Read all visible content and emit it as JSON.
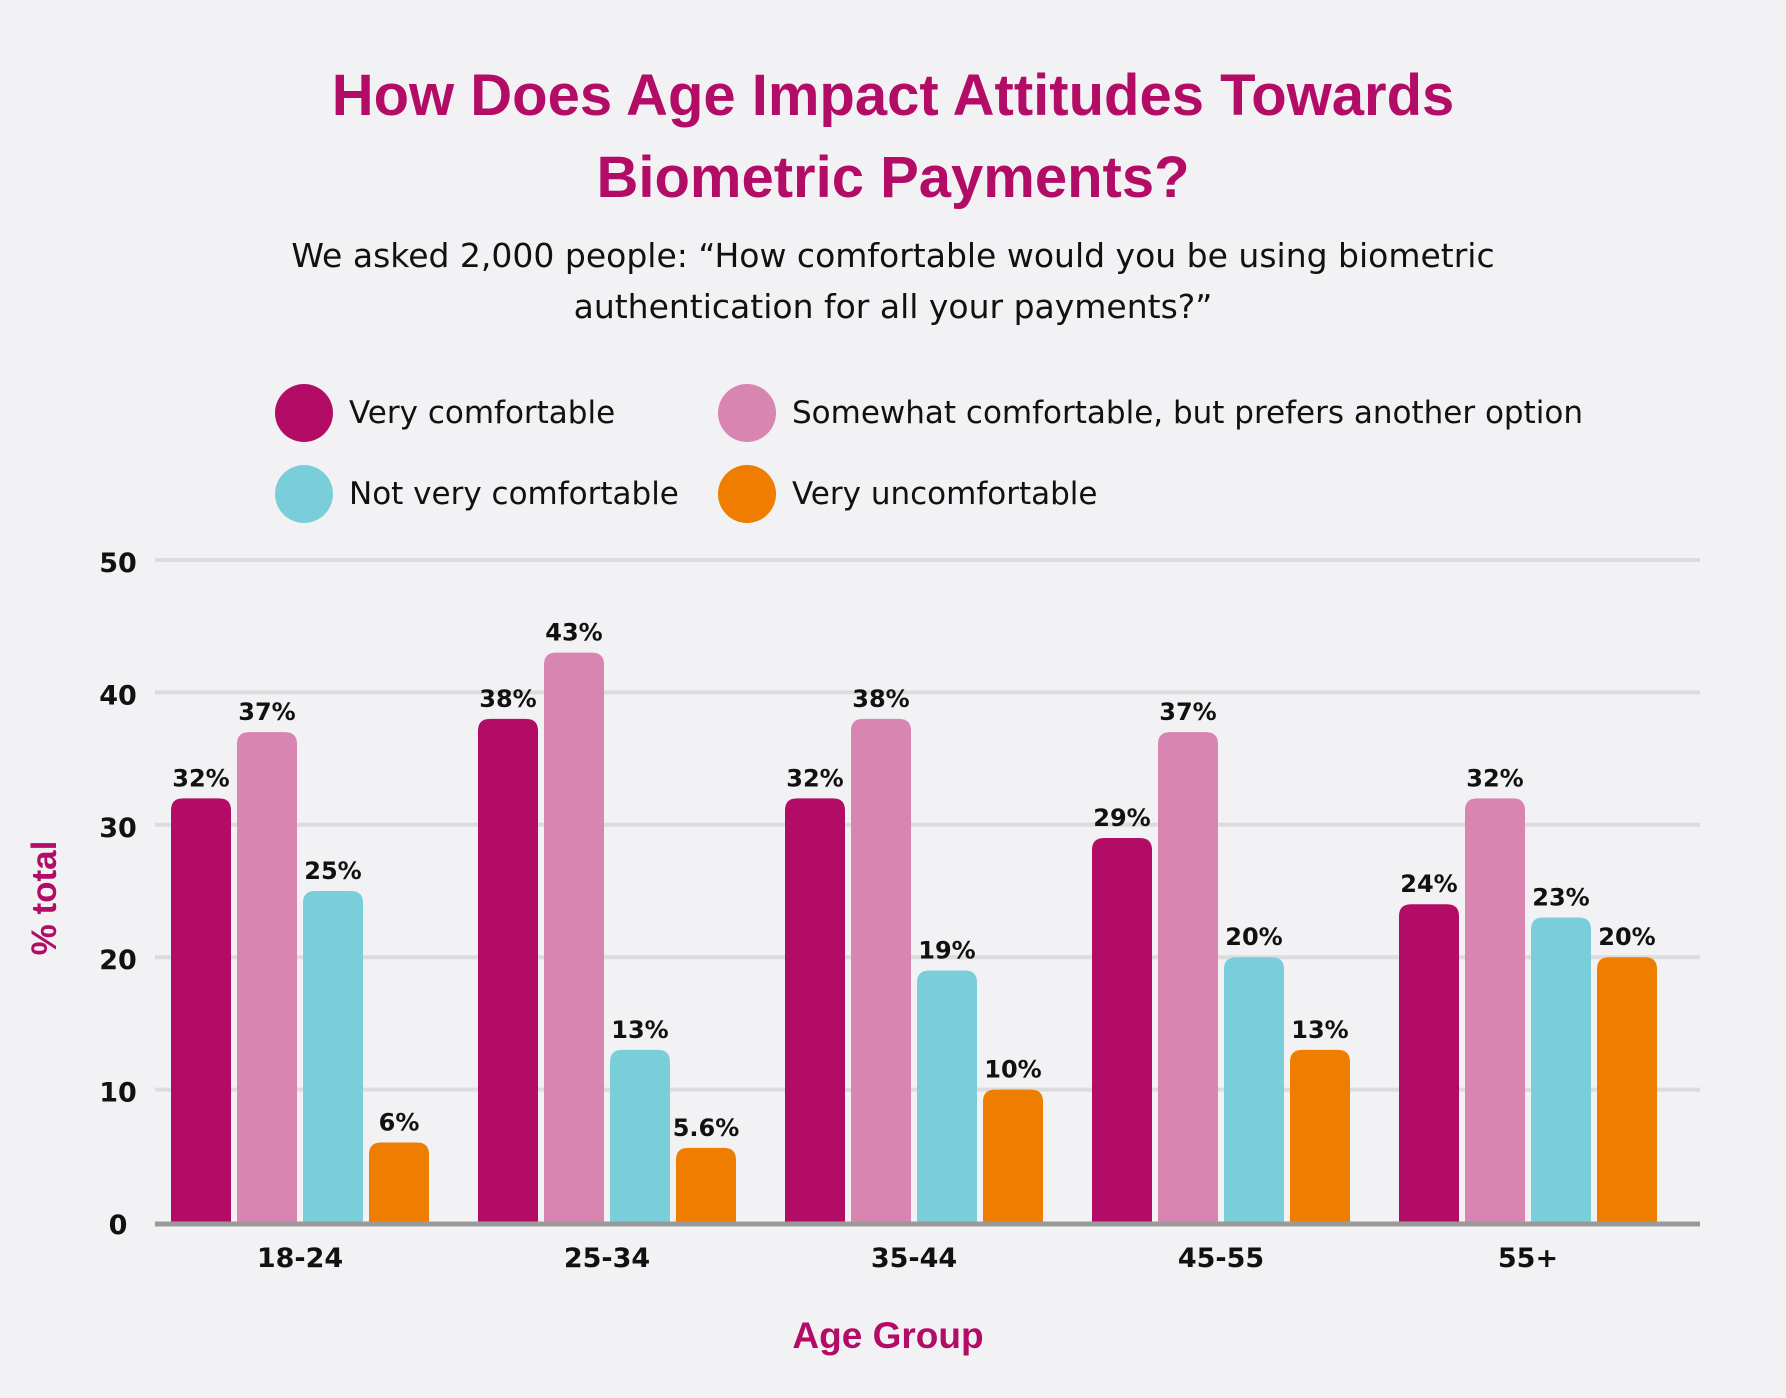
{
  "colors": {
    "accent": "#b30c66",
    "series": [
      "#b30c66",
      "#d885b2",
      "#79ced9",
      "#ee7d00"
    ],
    "gridline": "#dcdbde",
    "axis": "#9a9a9a",
    "background": "#f2f1f3"
  },
  "chart_data": {
    "type": "bar",
    "title_lines": [
      "How Does Age Impact Attitudes Towards",
      "Biometric Payments?"
    ],
    "subtitle_lines": [
      "We asked 2,000 people: “How comfortable would you be using biometric",
      "authentication for all your payments?”"
    ],
    "xlabel": "Age Group",
    "ylabel": "% total",
    "ylim": [
      0,
      50
    ],
    "yticks": [
      "0",
      "10",
      "20",
      "30",
      "40",
      "50"
    ],
    "grid": true,
    "legend_position": "top",
    "categories": [
      "18-24",
      "25-34",
      "35-44",
      "45-55",
      "55+"
    ],
    "series": [
      {
        "name": "Very comfortable",
        "values": [
          32,
          38,
          32,
          29,
          24
        ],
        "labels": [
          "32%",
          "38%",
          "32%",
          "29%",
          "24%"
        ]
      },
      {
        "name": "Somewhat comfortable, but prefers another option",
        "values": [
          37,
          43,
          38,
          37,
          32
        ],
        "labels": [
          "37%",
          "43%",
          "38%",
          "37%",
          "32%"
        ]
      },
      {
        "name": "Not very comfortable",
        "values": [
          25,
          13,
          19,
          20,
          23
        ],
        "labels": [
          "25%",
          "13%",
          "19%",
          "20%",
          "23%"
        ]
      },
      {
        "name": "Very uncomfortable",
        "values": [
          6,
          5.6,
          10,
          13,
          20
        ],
        "labels": [
          "6%",
          "5.6%",
          "10%",
          "13%",
          "20%"
        ]
      }
    ]
  }
}
